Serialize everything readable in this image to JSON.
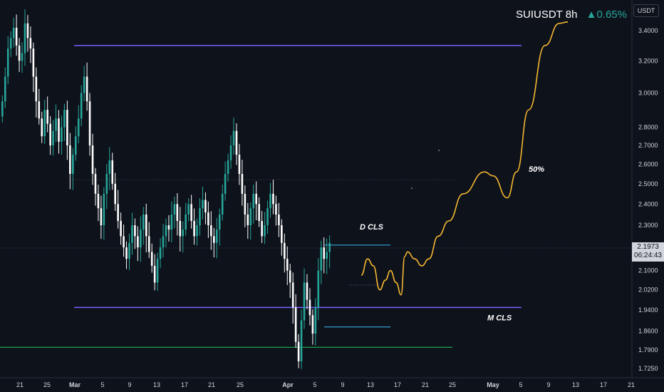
{
  "header": {
    "symbol": "SUIUSDT",
    "interval": "8h",
    "arrow": "▲",
    "change": "0.65%"
  },
  "currency_badge": "USDT",
  "price_badge": {
    "price": "2.1973",
    "countdown": "06:24:43"
  },
  "colors": {
    "background": "#0e121b",
    "up": "#26a69a",
    "down": "#ffffff",
    "level": "#7b61ff",
    "support": "#22c55e",
    "projection": "#f5b731",
    "box": "#38bdf8"
  },
  "chart_data": {
    "type": "candlestick",
    "symbol": "SUIUSDT",
    "interval": "8h",
    "y_scale": "log",
    "ylim": [
      1.7,
      3.55
    ],
    "y_ticks": [
      "3.4000",
      "3.2000",
      "3.0000",
      "2.8000",
      "2.7000",
      "2.6000",
      "2.5000",
      "2.4000",
      "2.3000",
      "2.1000",
      "2.0200",
      "1.9400",
      "1.8600",
      "1.7900",
      "1.7250"
    ],
    "x_ticks": [
      "21",
      "25",
      "Mar",
      "5",
      "9",
      "13",
      "17",
      "21",
      "25",
      "Apr",
      "5",
      "9",
      "13",
      "17",
      "21",
      "25",
      "May",
      "5",
      "9",
      "13",
      "17",
      "21"
    ],
    "candles_close": [
      2.95,
      3.1,
      3.28,
      3.35,
      3.42,
      3.3,
      3.2,
      3.25,
      3.45,
      3.35,
      3.28,
      3.1,
      2.95,
      2.85,
      2.75,
      2.9,
      2.82,
      2.7,
      2.78,
      2.85,
      2.72,
      2.8,
      2.9,
      2.7,
      2.55,
      2.65,
      2.75,
      2.85,
      3.0,
      3.1,
      2.95,
      2.7,
      2.55,
      2.45,
      2.38,
      2.3,
      2.45,
      2.55,
      2.62,
      2.5,
      2.4,
      2.32,
      2.25,
      2.2,
      2.15,
      2.22,
      2.3,
      2.25,
      2.2,
      2.28,
      2.35,
      2.25,
      2.18,
      2.12,
      2.05,
      2.15,
      2.2,
      2.25,
      2.3,
      2.28,
      2.35,
      2.4,
      2.32,
      2.25,
      2.28,
      2.35,
      2.4,
      2.32,
      2.25,
      2.3,
      2.38,
      2.42,
      2.36,
      2.3,
      2.25,
      2.22,
      2.28,
      2.35,
      2.45,
      2.55,
      2.62,
      2.7,
      2.78,
      2.65,
      2.55,
      2.45,
      2.35,
      2.3,
      2.38,
      2.45,
      2.4,
      2.32,
      2.25,
      2.3,
      2.38,
      2.45,
      2.4,
      2.35,
      2.3,
      2.22,
      2.15,
      2.1,
      2.05,
      1.95,
      1.82,
      1.75,
      1.9,
      2.05,
      1.98,
      1.92,
      1.85,
      1.95,
      2.1,
      2.2,
      2.15,
      2.18,
      2.22
    ],
    "levels": [
      {
        "name": "resistance",
        "price": 3.3
      },
      {
        "name": "support",
        "price": 1.95
      },
      {
        "name": "low-support",
        "price": 1.8
      },
      {
        "name": "mid-dotted",
        "price": 2.52
      }
    ],
    "annotations": [
      {
        "text": "D CLS",
        "price": 2.28
      },
      {
        "text": "50%",
        "price": 2.56
      },
      {
        "text": "M CLS",
        "price": 1.9
      }
    ],
    "projection_prices": [
      2.08,
      2.15,
      2.12,
      2.02,
      2.06,
      2.1,
      2.05,
      2.0,
      2.16,
      2.18,
      2.15,
      2.12,
      2.15,
      2.25,
      2.32,
      2.45,
      2.56,
      2.54,
      2.43,
      2.56,
      2.9,
      3.3,
      3.45,
      3.46
    ]
  }
}
